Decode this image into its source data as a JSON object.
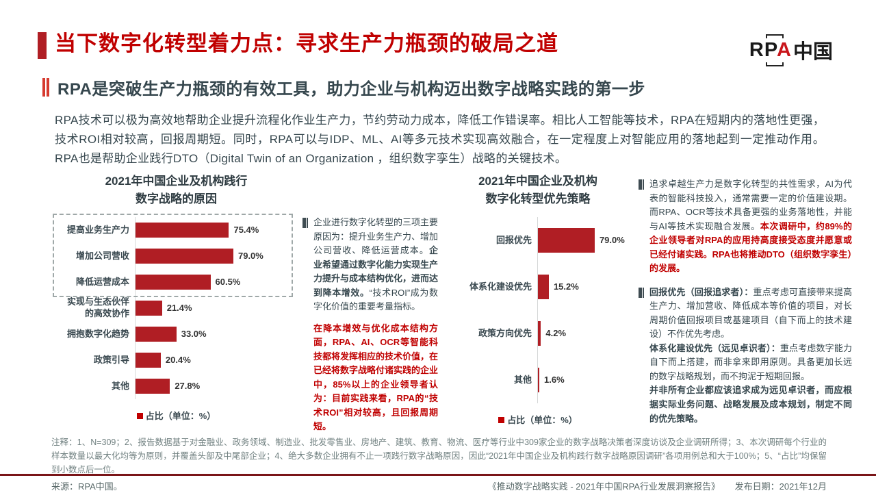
{
  "header": {
    "title": "当下数字化转型着力点：寻求生产力瓶颈的破局之道",
    "subtitle": "RPA是突破生产力瓶颈的有效工具，助力企业与机构迈出数字战略实践的第一步",
    "logo": {
      "part1": "RP",
      "part2": "A",
      "part3": "中国"
    }
  },
  "intro": "RPA技术可以极为高效地帮助企业提升流程化作业生产力，节约劳动力成本，降低工作错误率。相比人工智能等技术，RPA在短期内的落地性更强，技术ROI相对较高，回报周期短。同时，RPA可以与IDP、ML、AI等多元技术实现高效融合，在一定程度上对智能应用的落地起到一定推动作用。RPA也是帮助企业践行DTO（Digital Twin of an Organization ，组织数字孪生）战略的关键技术。",
  "chart_data": [
    {
      "type": "bar",
      "orientation": "horizontal",
      "title": "2021年中国企业及机构践行\n数字战略的原因",
      "categories": [
        "提高业务生产力",
        "增加公司营收",
        "降低运营成本",
        "实现与生态伙伴\n的高效协作",
        "拥抱数字化趋势",
        "政策引导",
        "其他"
      ],
      "values": [
        75.4,
        79.0,
        60.5,
        21.4,
        33.0,
        20.4,
        27.8
      ],
      "value_labels": [
        "75.4%",
        "79.0%",
        "60.5%",
        "21.4%",
        "33.0%",
        "20.4%",
        "27.8%"
      ],
      "legend": "占比（单位：%）",
      "xlim": [
        0,
        100
      ],
      "grid": false,
      "legend_position": "bottom",
      "bar_color": "#B01E24",
      "highlight_box_rows": [
        0,
        1,
        2
      ]
    },
    {
      "type": "bar",
      "orientation": "horizontal",
      "title": "2021年中国企业及机构\n数字化转型优先策略",
      "categories": [
        "回报优先",
        "体系化建设优先",
        "政策方向优先",
        "其他"
      ],
      "values": [
        79.0,
        15.2,
        4.2,
        1.6
      ],
      "value_labels": [
        "79.0%",
        "15.2%",
        "4.2%",
        "1.6%"
      ],
      "legend": "占比（单位：%）",
      "xlim": [
        0,
        100
      ],
      "grid": false,
      "legend_position": "bottom",
      "bar_color": "#B01E24"
    }
  ],
  "mid_note": {
    "paragraphs": [
      [
        {
          "t": "企业进行数字化转型的三项主要原因为：提升业务生产力、增加公司营收、降低运营成本。",
          "s": "n"
        },
        {
          "t": "企业希望通过数字化能力实现生产力提升与成本结构优化，进而达到降本增效。",
          "s": "b"
        },
        {
          "t": "“技术ROI”成为数字化价值的重要考量指标。",
          "s": "n"
        }
      ],
      [
        {
          "t": "在降本增效与优化成本结构方面，RPA、AI、OCR等智能科技都将发挥相应的技术价值，在已经将数字战略付诸实践的企业中，85%以上的企业领导者认为：目前实践来看，RPA的“技术ROI”相对较高，且回报周期短。",
          "s": "rb"
        }
      ]
    ]
  },
  "right_note_1": {
    "paragraphs": [
      [
        {
          "t": "追求卓越生产力是数字化转型的共性需求，AI为代表的智能科技投入，通常需要一定的价值建设期。而RPA、OCR等技术具备更强的业务落地性，并能与AI等技术实现融合发展。",
          "s": "n"
        },
        {
          "t": "本次调研中，约89%的企业领导者对RPA的应用持高度接受态度并愿意或已经付诸实践。RPA也将推动DTO（组织数字孪生）的发展。",
          "s": "rb"
        }
      ]
    ]
  },
  "right_note_2": {
    "paragraphs": [
      [
        {
          "t": "回报优先（回报追求者）：",
          "s": "b"
        },
        {
          "t": "重点考虑可直接带来提高生产力、增加营收、降低成本等价值的项目，对长周期价值回报项目或基建项目（自下而上的技术建设）不作优先考虑。",
          "s": "n"
        }
      ],
      [
        {
          "t": "体系化建设优先（远见卓识者）：",
          "s": "b"
        },
        {
          "t": "重点考虑数字能力自下而上搭建，而非拿来即用原则。具备更加长远的数字战略规划，而不拘泥于短期回报。",
          "s": "n"
        }
      ],
      [
        {
          "t": "并非所有企业都应该追求成为远见卓识者，而应根据实际业务问题、战略发展及成本规划，制定不同的优先策略。",
          "s": "b"
        }
      ]
    ]
  },
  "footnote": "注释：1、N=309；2、报告数据基于对金融业、政务领域、制造业、批发零售业、房地产、建筑、教育、物流、医疗等行业中309家企业的数字战略决策者深度访谈及企业调研所得；3、本次调研每个行业的样本数量以最大化均等为原则，并覆盖头部及中尾部企业；4、绝大多数企业拥有不止一项践行数字战略原因，因此“2021年中国企业及机构践行数字战略原因调研”各项用例总和大于100%；5、“占比”均保留到小数点后一位。",
  "footer": {
    "source": "来源：RPA中国。",
    "report": "《推动数字战略实践 - 2021年中国RPA行业发展洞察报告》",
    "publish": "发布日期：2021年12月"
  }
}
